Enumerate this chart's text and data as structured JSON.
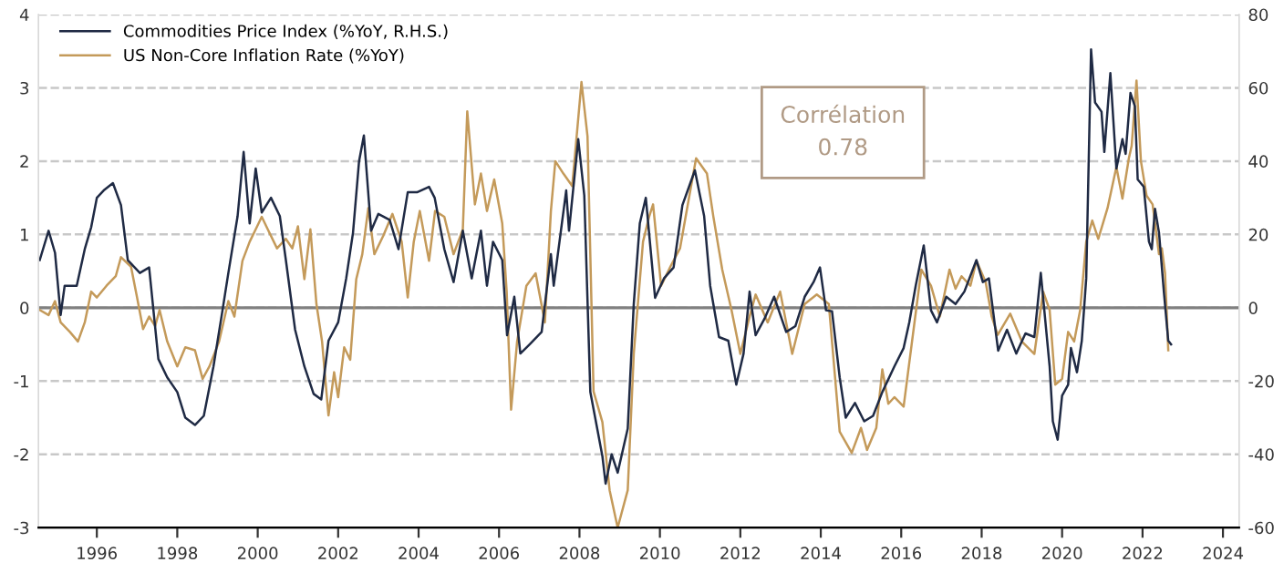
{
  "chart_data": {
    "type": "line",
    "series": [
      {
        "name": "Commodities Price Index (%YoY, R.H.S.)",
        "color": "#1f2a44",
        "axis": "y2",
        "x": [
          1994.58,
          1994.8,
          1994.96,
          1995.1,
          1995.2,
          1995.5,
          1995.7,
          1995.86,
          1996.0,
          1996.17,
          1996.4,
          1996.6,
          1996.77,
          1997.07,
          1997.3,
          1997.53,
          1997.75,
          1998.0,
          1998.2,
          1998.44,
          1998.66,
          1998.9,
          1999.12,
          1999.27,
          1999.5,
          1999.65,
          1999.8,
          1999.95,
          2000.1,
          2000.33,
          2000.55,
          2000.7,
          2000.93,
          2001.16,
          2001.39,
          2001.58,
          2001.76,
          2002.0,
          2002.2,
          2002.37,
          2002.52,
          2002.64,
          2002.82,
          2003.0,
          2003.28,
          2003.5,
          2003.73,
          2003.96,
          2004.26,
          2004.4,
          2004.64,
          2004.87,
          2005.1,
          2005.32,
          2005.55,
          2005.7,
          2005.85,
          2006.08,
          2006.2,
          2006.38,
          2006.53,
          2006.76,
          2007.06,
          2007.29,
          2007.36,
          2007.67,
          2007.74,
          2007.97,
          2008.12,
          2008.27,
          2008.57,
          2008.65,
          2008.8,
          2008.95,
          2009.2,
          2009.35,
          2009.5,
          2009.65,
          2009.88,
          2010.1,
          2010.34,
          2010.56,
          2010.87,
          2011.1,
          2011.25,
          2011.47,
          2011.7,
          2011.9,
          2012.08,
          2012.23,
          2012.38,
          2012.6,
          2012.84,
          2013.14,
          2013.37,
          2013.6,
          2013.82,
          2013.98,
          2014.13,
          2014.28,
          2014.47,
          2014.62,
          2014.85,
          2015.08,
          2015.3,
          2015.53,
          2015.83,
          2016.06,
          2016.2,
          2016.36,
          2016.56,
          2016.74,
          2016.89,
          2017.12,
          2017.35,
          2017.57,
          2017.87,
          2018.03,
          2018.18,
          2018.41,
          2018.63,
          2018.86,
          2019.09,
          2019.31,
          2019.47,
          2019.69,
          2019.77,
          2019.89,
          2020.0,
          2020.15,
          2020.22,
          2020.37,
          2020.49,
          2020.6,
          2020.72,
          2020.82,
          2020.98,
          2021.05,
          2021.2,
          2021.35,
          2021.5,
          2021.58,
          2021.7,
          2021.81,
          2021.88,
          2022.03,
          2022.16,
          2022.23,
          2022.31,
          2022.41,
          2022.53,
          2022.64,
          2022.71
        ],
        "values": [
          13,
          21,
          15,
          -2,
          6,
          6,
          16,
          22,
          30,
          32,
          34,
          28,
          13,
          9.5,
          11,
          -14,
          -19,
          -23,
          -30,
          -32,
          -29.5,
          -16,
          -1,
          9.5,
          25,
          42.5,
          23,
          38,
          26,
          30,
          25,
          13,
          -6,
          -16,
          -23.5,
          -25,
          -9,
          -4,
          8,
          20.5,
          40,
          47,
          21,
          25.6,
          24,
          16,
          31.5,
          31.5,
          33,
          30,
          16,
          7,
          21,
          8,
          21,
          6,
          18,
          13,
          -7.5,
          3,
          -12.5,
          -10,
          -6.6,
          14.6,
          6,
          32,
          21,
          46,
          30.6,
          -23,
          -40.5,
          -48,
          -40,
          -45,
          -33,
          1,
          23,
          30,
          2.7,
          8,
          11,
          28,
          37.5,
          25,
          6,
          -8,
          -9,
          -21,
          -12.5,
          4.4,
          -7.5,
          -3,
          3,
          -6.6,
          -5,
          3,
          7,
          11,
          -0.7,
          -1,
          -19,
          -30,
          -26,
          -31,
          -29.5,
          -23,
          -16,
          -11,
          -4,
          6,
          17,
          -0.7,
          -4,
          3,
          1,
          4.4,
          13,
          7,
          8,
          -11.7,
          -6,
          -12.5,
          -7,
          -8,
          9.5,
          -16,
          -31,
          -36,
          -24,
          -21,
          -11,
          -17.6,
          -9,
          8,
          70.5,
          56,
          53.5,
          42.5,
          64,
          38,
          46,
          42,
          58.6,
          55,
          35,
          33,
          18,
          16,
          27,
          20.5,
          4.4,
          -9,
          -10
        ]
      },
      {
        "name": "US Non-Core Inflation Rate (%YoY)",
        "color": "#c49a5a",
        "x": [
          1994.58,
          1994.8,
          1994.96,
          1995.1,
          1995.33,
          1995.53,
          1995.7,
          1995.86,
          1996.0,
          1996.24,
          1996.47,
          1996.6,
          1996.85,
          1997.0,
          1997.15,
          1997.3,
          1997.45,
          1997.56,
          1997.75,
          1998.0,
          1998.2,
          1998.44,
          1998.63,
          1998.8,
          1999.04,
          1999.27,
          1999.42,
          1999.62,
          1999.8,
          1999.95,
          2000.1,
          2000.25,
          2000.48,
          2000.7,
          2000.86,
          2001.0,
          2001.16,
          2001.31,
          2001.46,
          2001.6,
          2001.76,
          2001.9,
          2002.0,
          2002.15,
          2002.3,
          2002.45,
          2002.6,
          2002.75,
          2002.9,
          2003.12,
          2003.35,
          2003.58,
          2003.73,
          2003.88,
          2004.03,
          2004.26,
          2004.41,
          2004.64,
          2004.87,
          2005.1,
          2005.21,
          2005.4,
          2005.55,
          2005.7,
          2005.88,
          2006.08,
          2006.19,
          2006.3,
          2006.45,
          2006.68,
          2006.91,
          2007.14,
          2007.29,
          2007.4,
          2007.6,
          2007.82,
          2008.05,
          2008.2,
          2008.35,
          2008.57,
          2008.75,
          2008.95,
          2009.2,
          2009.35,
          2009.58,
          2009.73,
          2009.83,
          2010.03,
          2010.26,
          2010.5,
          2010.72,
          2010.9,
          2011.17,
          2011.33,
          2011.55,
          2011.78,
          2012.0,
          2012.23,
          2012.38,
          2012.68,
          2012.99,
          2013.29,
          2013.6,
          2013.9,
          2014.2,
          2014.47,
          2014.77,
          2015.0,
          2015.15,
          2015.38,
          2015.53,
          2015.68,
          2015.83,
          2016.06,
          2016.29,
          2016.5,
          2016.74,
          2016.96,
          2017.2,
          2017.35,
          2017.5,
          2017.72,
          2017.87,
          2018.1,
          2018.25,
          2018.4,
          2018.71,
          2019.0,
          2019.31,
          2019.53,
          2019.69,
          2019.83,
          2020.0,
          2020.15,
          2020.3,
          2020.45,
          2020.6,
          2020.75,
          2020.9,
          2021.13,
          2021.35,
          2021.5,
          2021.66,
          2021.73,
          2021.85,
          2021.96,
          2022.1,
          2022.25,
          2022.41,
          2022.48,
          2022.56,
          2022.64
        ],
        "values": [
          -0.03,
          -0.1,
          0.09,
          -0.2,
          -0.33,
          -0.46,
          -0.2,
          0.22,
          0.14,
          0.3,
          0.43,
          0.69,
          0.56,
          0.14,
          -0.29,
          -0.12,
          -0.25,
          -0.03,
          -0.46,
          -0.8,
          -0.54,
          -0.58,
          -0.97,
          -0.8,
          -0.46,
          0.09,
          -0.12,
          0.64,
          0.9,
          1.07,
          1.24,
          1.07,
          0.81,
          0.94,
          0.81,
          1.11,
          0.39,
          1.07,
          0.05,
          -0.46,
          -1.47,
          -0.88,
          -1.22,
          -0.54,
          -0.71,
          0.39,
          0.73,
          1.36,
          0.73,
          0.98,
          1.28,
          0.9,
          0.14,
          0.9,
          1.32,
          0.64,
          1.32,
          1.24,
          0.73,
          1.07,
          2.68,
          1.41,
          1.83,
          1.32,
          1.75,
          1.15,
          0.22,
          -1.39,
          -0.46,
          0.3,
          0.47,
          -0.2,
          1.32,
          2.0,
          1.83,
          1.66,
          3.08,
          2.34,
          -1.14,
          -1.56,
          -2.49,
          -3.0,
          -2.49,
          -0.63,
          0.9,
          1.24,
          1.41,
          0.3,
          0.56,
          0.81,
          1.49,
          2.04,
          1.83,
          1.24,
          0.52,
          -0.03,
          -0.63,
          -0.12,
          0.18,
          -0.2,
          0.22,
          -0.63,
          0.05,
          0.18,
          0.05,
          -1.69,
          -1.98,
          -1.64,
          -1.94,
          -1.64,
          -0.84,
          -1.31,
          -1.22,
          -1.35,
          -0.37,
          0.52,
          0.3,
          -0.12,
          0.52,
          0.26,
          0.43,
          0.3,
          0.64,
          0.35,
          -0.12,
          -0.37,
          -0.08,
          -0.46,
          -0.63,
          0.22,
          -0.03,
          -1.05,
          -0.97,
          -0.33,
          -0.46,
          -0.03,
          0.9,
          1.19,
          0.94,
          1.36,
          1.92,
          1.49,
          2.04,
          2.21,
          3.1,
          2.0,
          1.53,
          1.41,
          0.73,
          0.81,
          0.47,
          -0.58
        ]
      }
    ],
    "xlim": [
      1994.55,
      2024.4
    ],
    "xticks": [
      1996,
      1998,
      2000,
      2002,
      2004,
      2006,
      2008,
      2010,
      2012,
      2014,
      2016,
      2018,
      2020,
      2022,
      2024
    ],
    "ylim": [
      -3,
      4
    ],
    "yticks": [
      -3,
      -2,
      -1,
      0,
      1,
      2,
      3,
      4
    ],
    "y2lim": [
      -60,
      80
    ],
    "y2ticks": [
      -60,
      -40,
      -20,
      0,
      20,
      40,
      60,
      80
    ],
    "ref_lines": [
      {
        "axis": "y",
        "value": 0,
        "color": "#808080",
        "line_style": "solid"
      }
    ],
    "grid": "y",
    "legend": "top left",
    "line_style": "solid",
    "marker": "none",
    "annotations": [
      "Corrélation",
      "0.78"
    ]
  }
}
